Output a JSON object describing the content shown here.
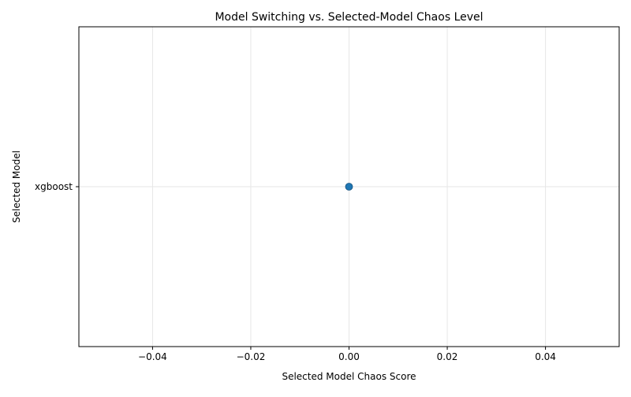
{
  "chart_data": {
    "type": "scatter",
    "title": "Model Switching vs. Selected-Model Chaos Level",
    "xlabel": "Selected Model Chaos Score",
    "ylabel": "Selected Model",
    "xlim": [
      -0.055,
      0.055
    ],
    "x_ticks": [
      -0.04,
      -0.02,
      0.0,
      0.02,
      0.04
    ],
    "x_tick_labels": [
      "−0.04",
      "−0.02",
      "0.00",
      "0.02",
      "0.04"
    ],
    "y_categories": [
      "xgboost"
    ],
    "grid": true,
    "legend": "none",
    "series": [
      {
        "color": "#1f77b4",
        "points": [
          {
            "x": 0.0,
            "y": "xgboost"
          }
        ]
      }
    ]
  }
}
